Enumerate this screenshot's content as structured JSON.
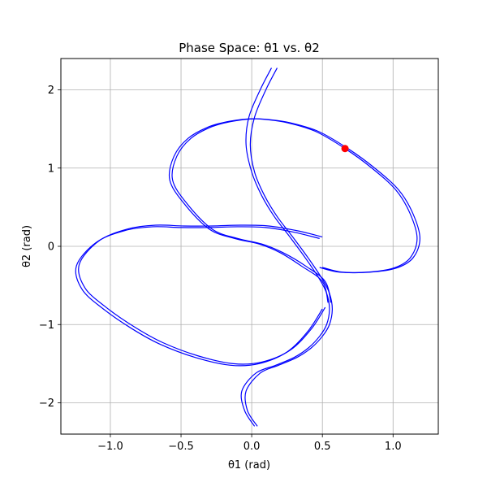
{
  "chart_data": {
    "type": "line",
    "title": "Phase Space: θ1 vs. θ2",
    "xlabel": "θ1 (rad)",
    "ylabel": "θ2 (rad)",
    "xlim": [
      -1.35,
      1.32
    ],
    "ylim": [
      -2.4,
      2.4
    ],
    "grid": true,
    "x_ticks": [
      -1.0,
      -0.5,
      0.0,
      0.5,
      1.0
    ],
    "x_tick_labels": [
      "−1.0",
      "−0.5",
      "0.0",
      "0.5",
      "1.0"
    ],
    "y_ticks": [
      -2,
      -1,
      0,
      1,
      2
    ],
    "y_tick_labels": [
      "−2",
      "−1",
      "0",
      "1",
      "2"
    ],
    "line_color": "#0000ff",
    "marker_color": "#ff0000",
    "current_point": {
      "x": 0.66,
      "y": 1.25
    },
    "series": [
      {
        "x": [
          0.14,
          0.06,
          -0.02,
          -0.04,
          0.0,
          0.07,
          0.16,
          0.27,
          0.38,
          0.48,
          0.53,
          0.55,
          0.53,
          0.48,
          0.4,
          0.3,
          0.17,
          0.03,
          -0.07,
          -0.05,
          0.02
        ],
        "y": [
          2.28,
          2.0,
          1.65,
          1.3,
          0.95,
          0.65,
          0.38,
          0.12,
          -0.15,
          -0.42,
          -0.6,
          -0.8,
          -1.0,
          -1.15,
          -1.3,
          -1.42,
          -1.52,
          -1.62,
          -1.85,
          -2.1,
          -2.3
        ]
      },
      {
        "x": [
          0.18,
          0.1,
          0.02,
          -0.01,
          0.02,
          0.09,
          0.18,
          0.29,
          0.4,
          0.5,
          0.55,
          0.57,
          0.55,
          0.5,
          0.42,
          0.32,
          0.19,
          0.06,
          -0.04,
          -0.03,
          0.04
        ],
        "y": [
          2.28,
          2.0,
          1.65,
          1.3,
          0.95,
          0.65,
          0.38,
          0.12,
          -0.15,
          -0.42,
          -0.6,
          -0.8,
          -1.0,
          -1.15,
          -1.3,
          -1.42,
          -1.52,
          -1.62,
          -1.85,
          -2.1,
          -2.3
        ]
      },
      {
        "x": [
          0.54,
          0.5,
          0.35,
          0.2,
          0.05,
          -0.12,
          -0.3,
          -0.48,
          -0.58,
          -0.55,
          -0.45,
          -0.3,
          -0.15,
          0.0,
          0.1,
          0.25,
          0.45,
          0.66,
          0.85,
          1.02,
          1.12,
          1.17,
          1.12,
          1.0,
          0.82,
          0.62,
          0.48
        ],
        "y": [
          -0.72,
          -0.45,
          -0.25,
          -0.08,
          0.03,
          0.1,
          0.22,
          0.55,
          0.85,
          1.15,
          1.38,
          1.53,
          1.6,
          1.63,
          1.62,
          1.58,
          1.47,
          1.25,
          1.0,
          0.72,
          0.42,
          0.1,
          -0.15,
          -0.28,
          -0.33,
          -0.33,
          -0.27
        ]
      },
      {
        "x": [
          0.56,
          0.52,
          0.38,
          0.22,
          0.07,
          -0.1,
          -0.28,
          -0.46,
          -0.56,
          -0.53,
          -0.43,
          -0.28,
          -0.13,
          0.02,
          0.12,
          0.27,
          0.47,
          0.68,
          0.87,
          1.04,
          1.14,
          1.19,
          1.14,
          1.02,
          0.84,
          0.64,
          0.5
        ],
        "y": [
          -0.72,
          -0.45,
          -0.25,
          -0.08,
          0.03,
          0.1,
          0.22,
          0.55,
          0.85,
          1.15,
          1.38,
          1.53,
          1.6,
          1.63,
          1.62,
          1.58,
          1.47,
          1.25,
          1.0,
          0.72,
          0.42,
          0.1,
          -0.15,
          -0.28,
          -0.33,
          -0.33,
          -0.27
        ]
      },
      {
        "x": [
          0.48,
          0.3,
          0.1,
          -0.1,
          -0.3,
          -0.5,
          -0.7,
          -0.9,
          -1.1,
          -1.24,
          -1.2,
          -1.05,
          -0.85,
          -0.65,
          -0.4,
          -0.15,
          0.05,
          0.25,
          0.4,
          0.5
        ],
        "y": [
          0.1,
          0.18,
          0.24,
          0.25,
          0.24,
          0.24,
          0.25,
          0.2,
          0.05,
          -0.25,
          -0.55,
          -0.8,
          -1.05,
          -1.25,
          -1.42,
          -1.52,
          -1.5,
          -1.35,
          -1.08,
          -0.8
        ]
      },
      {
        "x": [
          0.5,
          0.32,
          0.12,
          -0.08,
          -0.28,
          -0.48,
          -0.68,
          -0.88,
          -1.08,
          -1.22,
          -1.18,
          -1.03,
          -0.83,
          -0.63,
          -0.38,
          -0.13,
          0.07,
          0.27,
          0.42,
          0.52
        ],
        "y": [
          0.12,
          0.2,
          0.26,
          0.27,
          0.26,
          0.26,
          0.27,
          0.22,
          0.07,
          -0.23,
          -0.53,
          -0.78,
          -1.03,
          -1.23,
          -1.4,
          -1.5,
          -1.48,
          -1.33,
          -1.06,
          -0.78
        ]
      }
    ]
  }
}
